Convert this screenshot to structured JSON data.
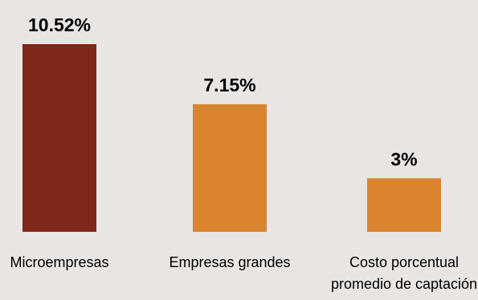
{
  "chart_data": {
    "type": "bar",
    "title": "",
    "xlabel": "",
    "ylabel": "",
    "categories": [
      [
        "Microempresas"
      ],
      [
        "Empresas grandes"
      ],
      [
        "Costo porcentual",
        "promedio de captación"
      ]
    ],
    "values": [
      10.52,
      7.15,
      3
    ],
    "value_labels": [
      "10.52%",
      "7.15%",
      "3%"
    ],
    "bar_colors": [
      "#7f2719",
      "#d98530",
      "#d98530"
    ],
    "ylim": [
      0,
      10.52
    ],
    "grid": false,
    "legend": "none"
  }
}
